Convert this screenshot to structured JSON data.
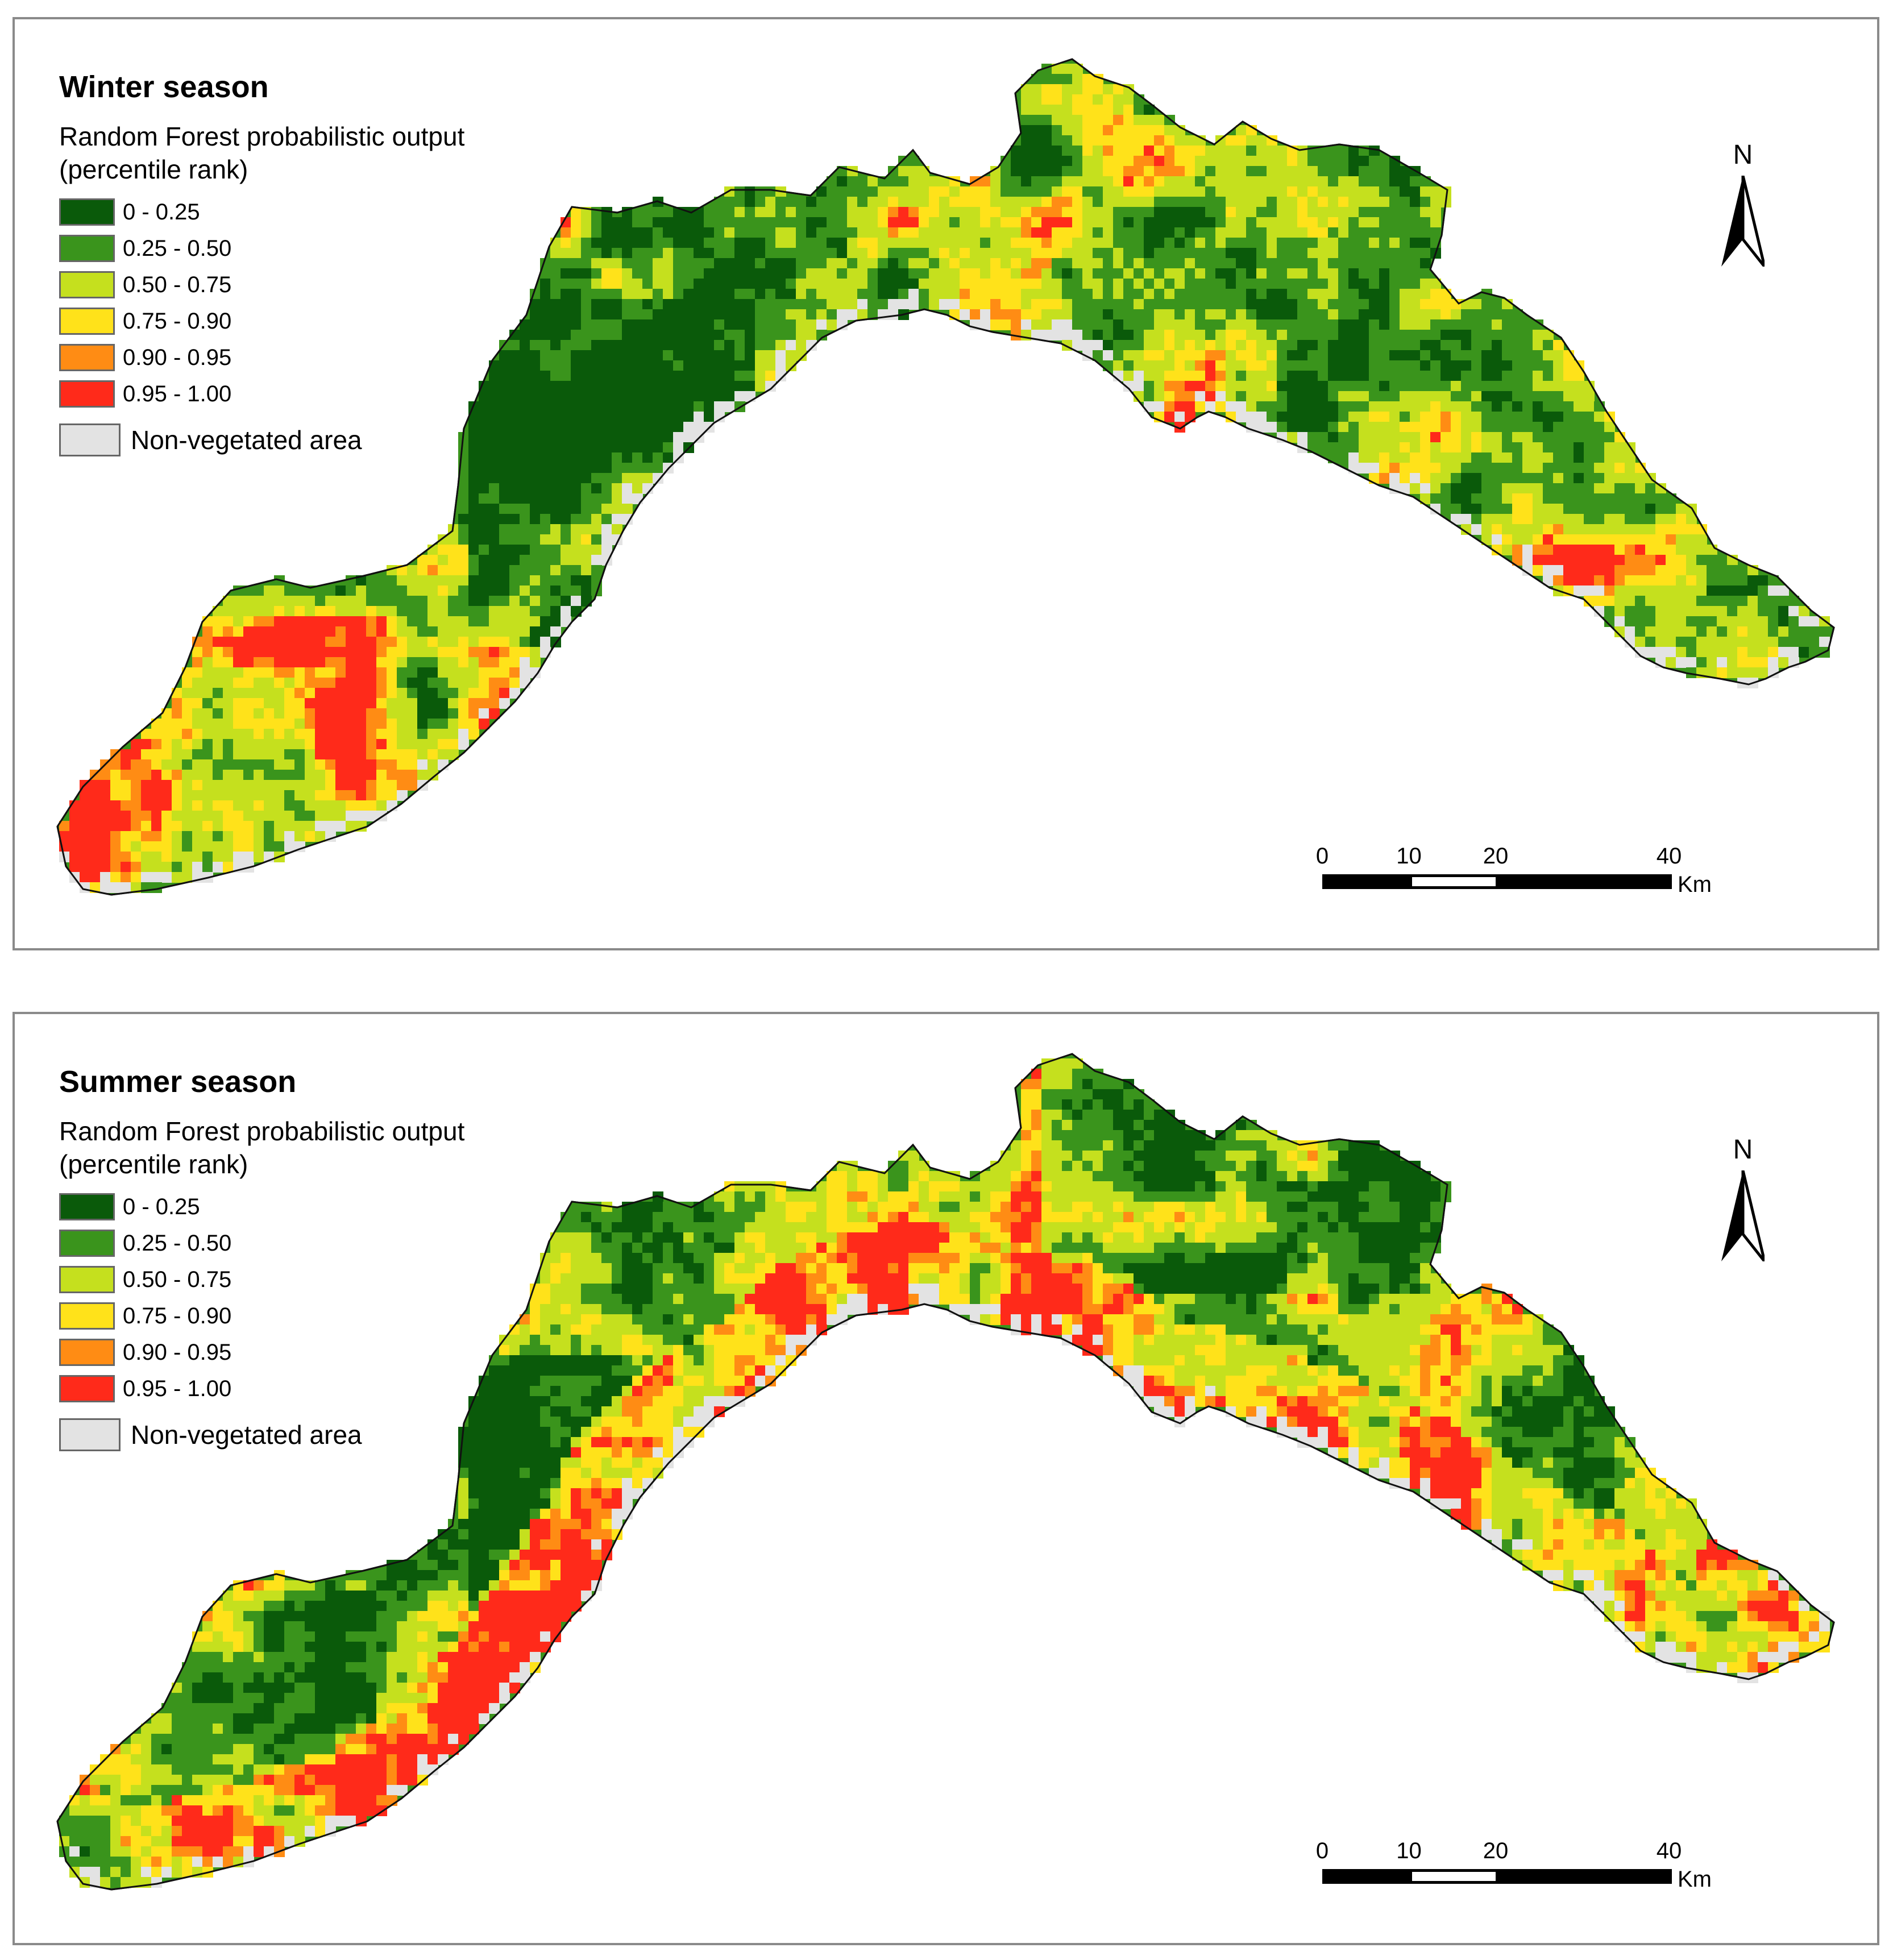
{
  "panels": [
    {
      "id": "winter",
      "title": "Winter season",
      "legend_subtitle_line1": "Random Forest probabilistic output",
      "legend_subtitle_line2": "(percentile rank)",
      "variant": "winter"
    },
    {
      "id": "summer",
      "title": "Summer season",
      "legend_subtitle_line1": "Random Forest probabilistic output",
      "legend_subtitle_line2": "(percentile rank)",
      "variant": "summer"
    }
  ],
  "legend_classes": [
    {
      "label": "0 - 0.25",
      "color": "#0a5a0a"
    },
    {
      "label": "0.25 - 0.50",
      "color": "#3a941c"
    },
    {
      "label": "0.50 - 0.75",
      "color": "#c5e01e"
    },
    {
      "label": "0.75 - 0.90",
      "color": "#ffe21a"
    },
    {
      "label": "0.90 - 0.95",
      "color": "#ff8c14"
    },
    {
      "label": "0.95 - 1.00",
      "color": "#ff2a1a"
    }
  ],
  "non_vegetated": {
    "label": "Non-vegetated area",
    "color": "#e3e3e3"
  },
  "north_arrow": {
    "letter": "N",
    "icon": "north-arrow-icon"
  },
  "scale_bar": {
    "ticks": [
      "0",
      "10",
      "20",
      "40"
    ],
    "tick_values": [
      0,
      10,
      20,
      40
    ],
    "unit": "Km"
  }
}
